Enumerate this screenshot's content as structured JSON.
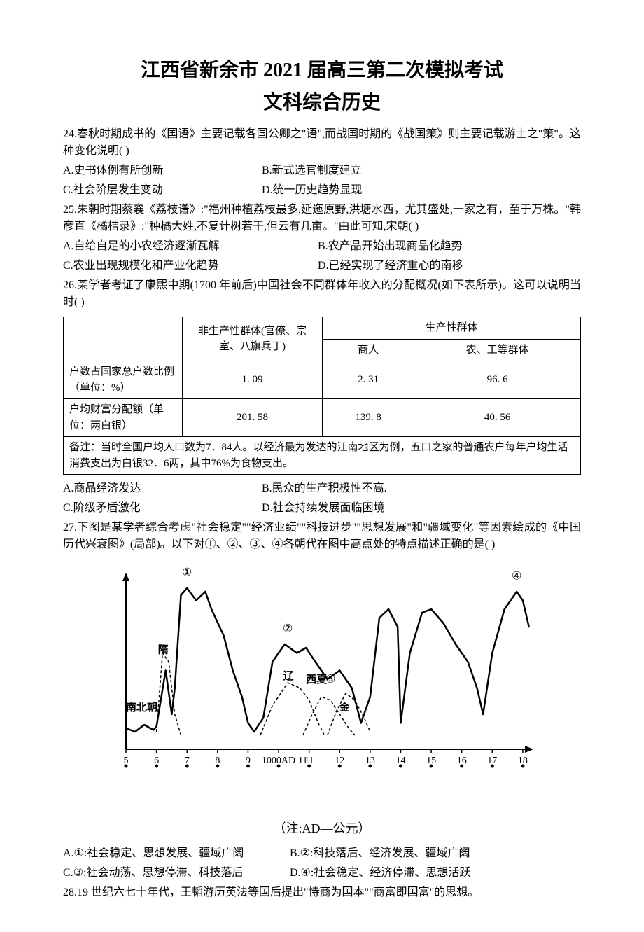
{
  "title_line1": "江西省新余市 2021 届高三第二次模拟考试",
  "title_line2": "文科综合历史",
  "q24": {
    "text": "24.春秋时期成书的《国语》主要记载各国公卿之\"语\",而战国时期的《战国策》则主要记载游士之\"策\"。这种变化说明( )",
    "optA": "A.史书体例有所创新",
    "optB": "B.新式选官制度建立",
    "optC": "C.社会阶层发生变动",
    "optD": "D.统一历史趋势显现"
  },
  "q25": {
    "text": "25.朱朝时期蔡襄《荔枝谱》:\"福州种植荔枝最多,延迤原野,洪塘水西，尤其盛处,一家之有，至于万株。\"韩彦直《橘桔录》:\"种橘大姓,不复计树若干,但云有几亩。\"由此可知,宋朝( )",
    "optA": "A.自给自足的小农经济逐渐瓦解",
    "optB": "B.农产品开始出现商品化趋势",
    "optC": "C.农业出现规模化和产业化趋势",
    "optD": "D.已经实现了经济重心的南移"
  },
  "q26": {
    "text": "26.某学者考证了康熙中期(1700 年前后)中国社会不同群体年收入的分配概况(如下表所示)。这可以说明当时( )",
    "table": {
      "header_nonprod": "非生产性群体(官僚、宗室、八旗兵丁)",
      "header_prod": "生产性群体",
      "header_merchant": "商人",
      "header_farmer": "农、工等群体",
      "row1_label": "户数占国家总户数比例（单位：%）",
      "row1_c1": "1. 09",
      "row1_c2": "2. 31",
      "row1_c3": "96. 6",
      "row2_label": "户均财富分配额（单位：两白银）",
      "row2_c1": "201. 58",
      "row2_c2": "139. 8",
      "row2_c3": "40. 56",
      "note": "备注：当时全国户均人口数为7．84人。以经济最为发达的江南地区为例，五口之家的普通农户每年户均生活消费支出为白银32．6两，其中76%为食物支出。"
    },
    "optA": "A.商品经济发达",
    "optB": "B.民众的生产积极性不高.",
    "optC": "C.阶级矛盾激化",
    "optD": "D.社会持续发展面临困境"
  },
  "q27": {
    "text": "27.下图是某学者综合考虑\"社会稳定\"\"经济业绩\"\"科技进步\"\"思想发展\"和\"疆域变化\"等因素绘成的《中国历代兴衰图》(局部)。以下对①、②、③、④各朝代在图中高点处的特点描述正确的是( )",
    "chart": {
      "type": "line",
      "x_ticks": [
        5,
        6,
        7,
        8,
        9,
        10,
        11,
        12,
        13,
        14,
        15,
        16,
        17,
        18
      ],
      "x_label_mid": "1000AD",
      "y_range": [
        0,
        100
      ],
      "labels": {
        "nanbeichao": "南北朝",
        "sui": "隋",
        "liao": "辽",
        "xixia": "西夏",
        "jin": "金"
      },
      "markers": {
        "m1": "①",
        "m2": "②",
        "m3": "③",
        "m4": "④"
      },
      "note": "（注:AD—公元）",
      "background_color": "#ffffff",
      "line_color": "#000000",
      "line_width": 2.5,
      "dashed_line_width": 1.5,
      "curves": {
        "main_dynasty": [
          [
            5.0,
            12
          ],
          [
            5.3,
            10
          ],
          [
            5.6,
            14
          ],
          [
            5.9,
            11
          ],
          [
            6.0,
            13
          ],
          [
            6.3,
            45
          ],
          [
            6.5,
            20
          ],
          [
            6.6,
            35
          ],
          [
            6.8,
            88
          ],
          [
            7.0,
            92
          ],
          [
            7.3,
            85
          ],
          [
            7.6,
            90
          ],
          [
            7.8,
            80
          ],
          [
            8.2,
            65
          ],
          [
            8.5,
            45
          ],
          [
            8.8,
            30
          ],
          [
            9.0,
            15
          ],
          [
            9.2,
            10
          ],
          [
            9.5,
            18
          ],
          [
            9.8,
            50
          ],
          [
            10.2,
            60
          ],
          [
            10.6,
            55
          ],
          [
            10.9,
            58
          ],
          [
            11.2,
            50
          ],
          [
            11.6,
            40
          ],
          [
            12.0,
            45
          ],
          [
            12.4,
            35
          ],
          [
            12.7,
            15
          ],
          [
            13.0,
            30
          ],
          [
            13.3,
            75
          ],
          [
            13.6,
            80
          ],
          [
            13.9,
            70
          ],
          [
            14.0,
            15
          ],
          [
            14.3,
            55
          ],
          [
            14.7,
            78
          ],
          [
            15.0,
            80
          ],
          [
            15.4,
            72
          ],
          [
            15.8,
            60
          ],
          [
            16.2,
            50
          ],
          [
            16.5,
            35
          ],
          [
            16.7,
            20
          ],
          [
            17.0,
            55
          ],
          [
            17.4,
            80
          ],
          [
            17.8,
            90
          ],
          [
            18.0,
            85
          ],
          [
            18.2,
            70
          ]
        ],
        "sui_dash": [
          [
            6.0,
            10
          ],
          [
            6.2,
            55
          ],
          [
            6.4,
            50
          ],
          [
            6.6,
            20
          ],
          [
            6.8,
            8
          ]
        ],
        "liao_dash": [
          [
            9.4,
            8
          ],
          [
            9.8,
            25
          ],
          [
            10.3,
            38
          ],
          [
            10.7,
            35
          ],
          [
            11.0,
            28
          ],
          [
            11.3,
            15
          ],
          [
            11.5,
            8
          ]
        ],
        "xixia_dash": [
          [
            10.8,
            8
          ],
          [
            11.1,
            20
          ],
          [
            11.4,
            30
          ],
          [
            11.7,
            28
          ],
          [
            12.0,
            20
          ],
          [
            12.3,
            12
          ],
          [
            12.5,
            8
          ]
        ],
        "jin_dash": [
          [
            11.6,
            8
          ],
          [
            11.9,
            22
          ],
          [
            12.2,
            32
          ],
          [
            12.5,
            28
          ],
          [
            12.8,
            18
          ],
          [
            13.0,
            10
          ]
        ]
      }
    },
    "optA": "A.①:社会稳定、思想发展、疆域广阔",
    "optB": "B.②:科技落后、经济发展、疆域广阔",
    "optC": "C.③:社会动荡、思想停滞、科技落后",
    "optD": "D.④:社会稳定、经济停滞、思想活跃"
  },
  "q28": {
    "text": "28.19 世纪六七十年代，王韬游历英法等国后提出\"恃商为国本\"\"商富即国富\"的思想。"
  }
}
